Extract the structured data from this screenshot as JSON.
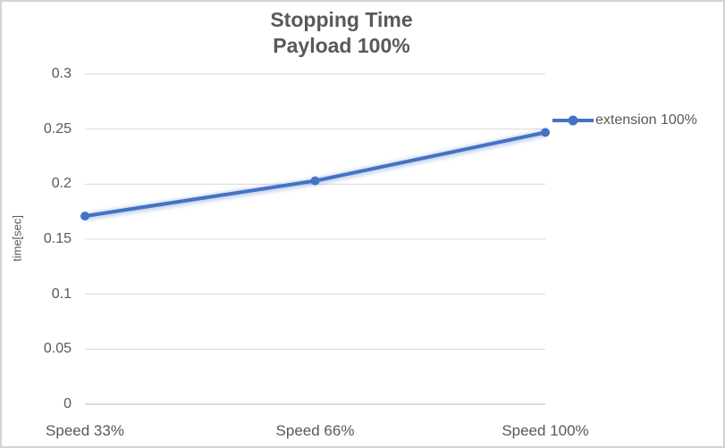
{
  "chart_data": {
    "type": "line",
    "title": "Stopping Time",
    "subtitle": "Payload 100%",
    "xlabel": "",
    "ylabel": "time[sec]",
    "categories": [
      "Speed 33%",
      "Speed 66%",
      "Speed 100%"
    ],
    "series": [
      {
        "name": "extension 100%",
        "values": [
          0.171,
          0.203,
          0.247
        ],
        "color": "#4472C4",
        "marker": "circle"
      }
    ],
    "ylim": [
      0,
      0.3
    ],
    "ytick_step": 0.05,
    "yticks": [
      "0.3",
      "0.25",
      "0.2",
      "0.15",
      "0.1",
      "0.05",
      "0"
    ],
    "grid": true,
    "gridline_color": "#D9D9D9",
    "axis_line_color": "#D9D9D9",
    "text_color": "#595959",
    "legend_position": "right"
  }
}
